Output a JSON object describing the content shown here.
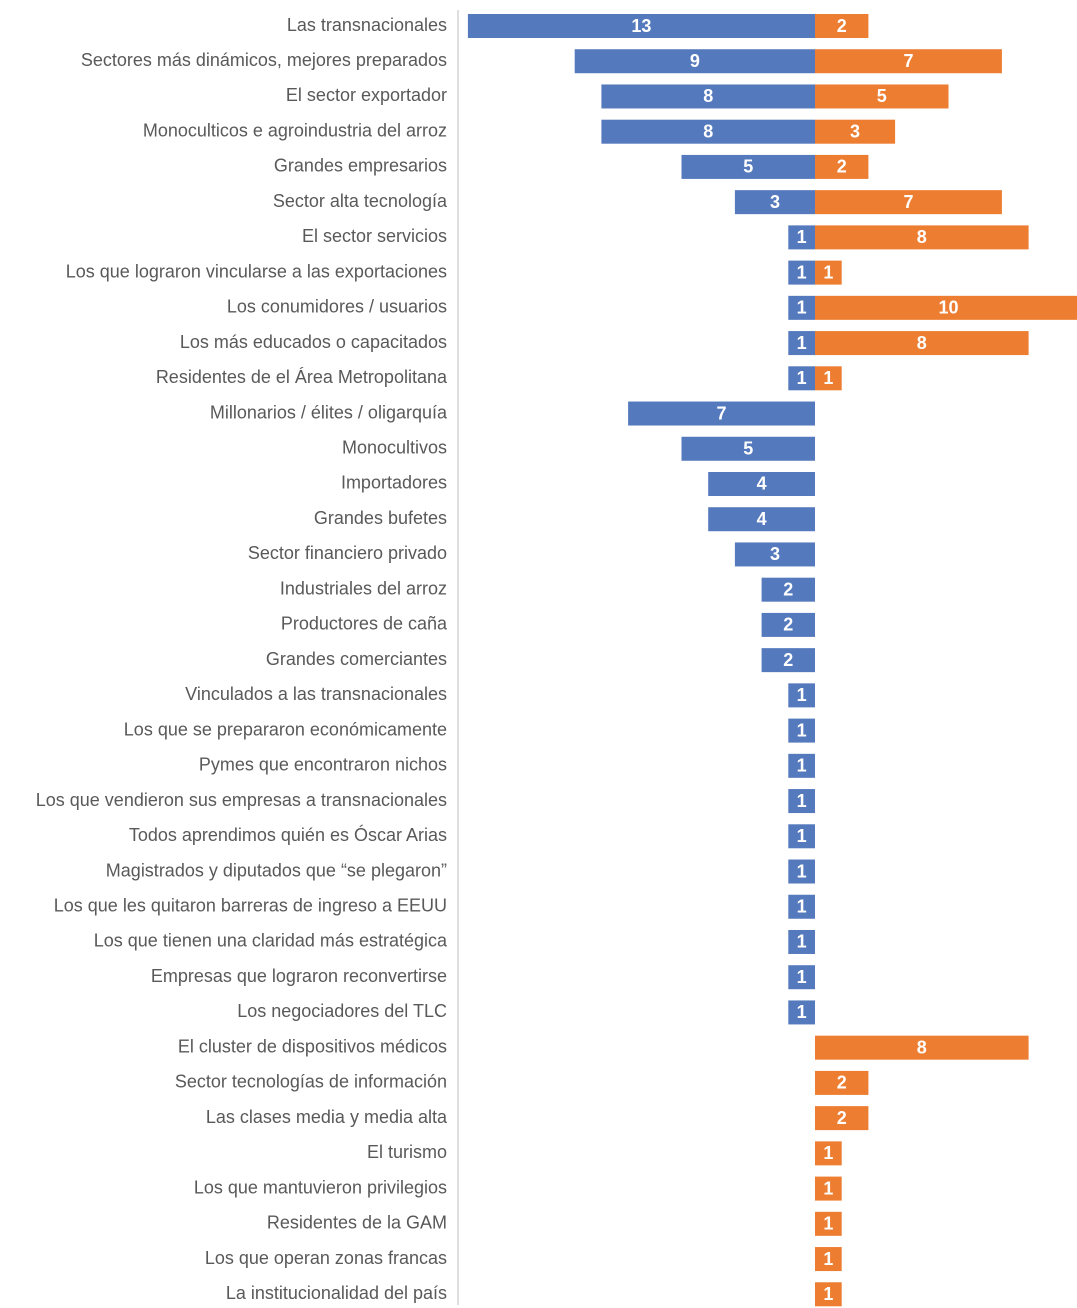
{
  "chart_data": {
    "type": "diverging-bar",
    "categories": [
      "Las transnacionales",
      "Sectores más dinámicos, mejores preparados",
      "El sector exportador",
      "Monoculticos e agroindustria del arroz",
      "Grandes empresarios",
      "Sector alta tecnología",
      "El sector servicios",
      "Los que lograron vincularse a las exportaciones",
      "Los conumidores / usuarios",
      "Los más educados o capacitados",
      "Residentes de el Área Metropolitana",
      "Millonarios / élites / oligarquía",
      "Monocultivos",
      "Importadores",
      "Grandes bufetes",
      "Sector financiero privado",
      "Industriales del arroz",
      "Productores de caña",
      "Grandes comerciantes",
      "Vinculados a las transnacionales",
      "Los que se prepararon económicamente",
      "Pymes que encontraron nichos",
      "Los que vendieron sus empresas a transnacionales",
      "Todos aprendimos quién es Óscar Arias",
      "Magistrados y diputados que “se plegaron”",
      "Los que les quitaron barreras de ingreso a EEUU",
      "Los que tienen una claridad más estratégica",
      "Empresas que lograron reconvertirse",
      "Los negociadores del TLC",
      "El cluster de dispositivos médicos",
      "Sector tecnologías de información",
      "Las clases media y media alta",
      "El turismo",
      "Los que mantuvieron privilegios",
      "Residentes de la GAM",
      "Los que operan zonas francas",
      "La institucionalidad del país"
    ],
    "series": [
      {
        "color": "#5579bd",
        "side": "left",
        "values": [
          13,
          9,
          8,
          8,
          5,
          3,
          1,
          1,
          1,
          1,
          1,
          7,
          5,
          4,
          4,
          3,
          2,
          2,
          2,
          1,
          1,
          1,
          1,
          1,
          1,
          1,
          1,
          1,
          1,
          null,
          null,
          null,
          null,
          null,
          null,
          null,
          null
        ]
      },
      {
        "color": "#ed7d31",
        "side": "right",
        "values": [
          2,
          7,
          5,
          3,
          2,
          7,
          8,
          1,
          10,
          8,
          1,
          null,
          null,
          null,
          null,
          null,
          null,
          null,
          null,
          null,
          null,
          null,
          null,
          null,
          null,
          null,
          null,
          null,
          null,
          8,
          2,
          2,
          1,
          1,
          1,
          1,
          1
        ]
      }
    ]
  }
}
